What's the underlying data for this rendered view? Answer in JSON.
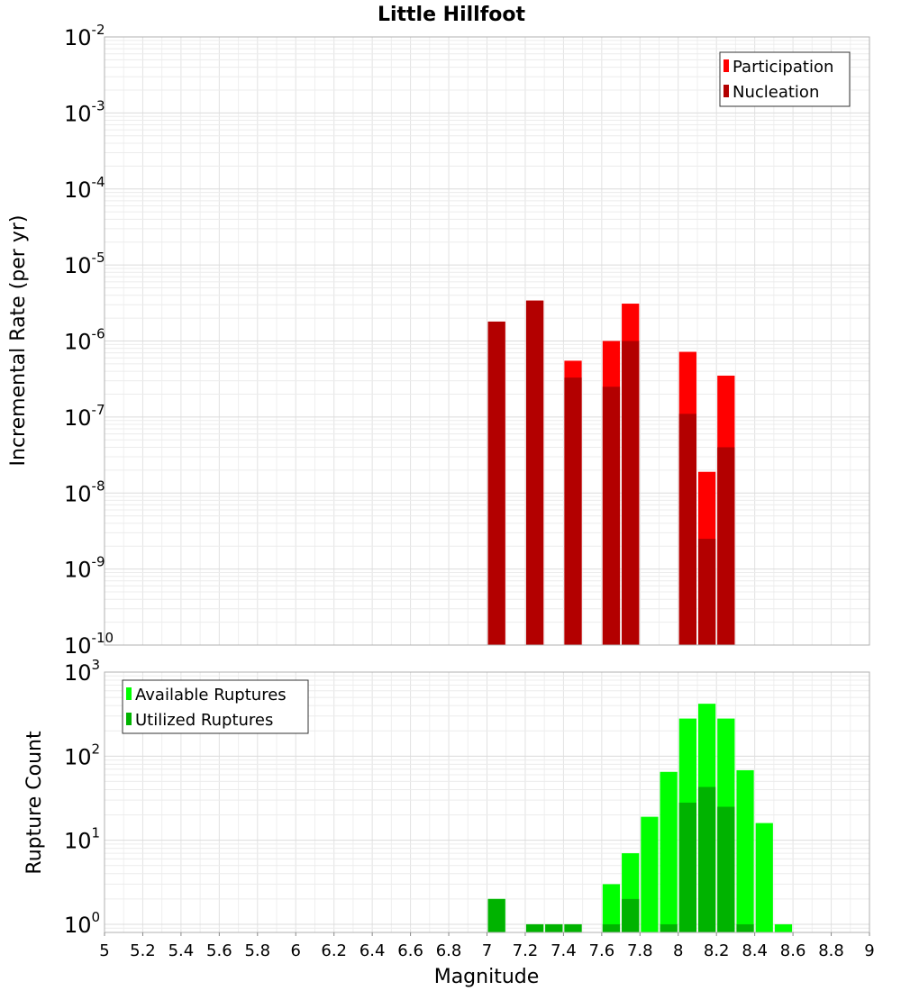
{
  "chart_data": [
    {
      "type": "bar",
      "title": "Little Hillfoot",
      "xlabel": "",
      "ylabel": "Incremental Rate (per yr)",
      "yscale": "log",
      "xlim": [
        5,
        9
      ],
      "ylim": [
        1e-10,
        0.01
      ],
      "ytick_exponents": [
        "-10",
        "-9",
        "-8",
        "-7",
        "-6",
        "-5",
        "-4",
        "-3",
        "-2"
      ],
      "legend_position": "top-right",
      "series": [
        {
          "name": "Participation",
          "color": "#ff0000",
          "x": [
            7.05,
            7.25,
            7.45,
            7.65,
            7.75,
            8.05,
            8.15,
            8.25
          ],
          "values": [
            1.8e-06,
            3.4e-06,
            5.5e-07,
            1e-06,
            3.1e-06,
            7.2e-07,
            1.9e-08,
            3.5e-07
          ]
        },
        {
          "name": "Nucleation",
          "color": "#b30000",
          "x": [
            7.05,
            7.25,
            7.45,
            7.65,
            7.75,
            8.05,
            8.15,
            8.25
          ],
          "values": [
            1.8e-06,
            3.4e-06,
            3.3e-07,
            2.5e-07,
            1e-06,
            1.1e-07,
            2.5e-09,
            4e-08
          ]
        }
      ]
    },
    {
      "type": "bar",
      "title": "",
      "xlabel": "Magnitude",
      "ylabel": "Rupture Count",
      "yscale": "log",
      "xlim": [
        5,
        9
      ],
      "ylim": [
        0.8,
        1000
      ],
      "ytick_exponents": [
        "0",
        "1",
        "2",
        "3"
      ],
      "xticks": [
        "5",
        "5.2",
        "5.4",
        "5.6",
        "5.8",
        "6",
        "6.2",
        "6.4",
        "6.6",
        "6.8",
        "7",
        "7.2",
        "7.4",
        "7.6",
        "7.8",
        "8",
        "8.2",
        "8.4",
        "8.6",
        "8.8",
        "9"
      ],
      "legend_position": "top-left",
      "series": [
        {
          "name": "Available Ruptures",
          "color": "#00ff00",
          "x": [
            7.05,
            7.25,
            7.35,
            7.45,
            7.65,
            7.75,
            7.85,
            7.95,
            8.05,
            8.15,
            8.25,
            8.35,
            8.45,
            8.55
          ],
          "values": [
            2,
            1,
            1,
            1,
            3,
            7,
            19,
            65,
            280,
            420,
            280,
            68,
            16,
            1
          ]
        },
        {
          "name": "Utilized Ruptures",
          "color": "#00b300",
          "x": [
            7.05,
            7.25,
            7.35,
            7.45,
            7.65,
            7.75,
            7.95,
            8.05,
            8.15,
            8.25,
            8.35
          ],
          "values": [
            2,
            1,
            1,
            1,
            1,
            2,
            1,
            28,
            43,
            25,
            1
          ]
        }
      ]
    }
  ]
}
